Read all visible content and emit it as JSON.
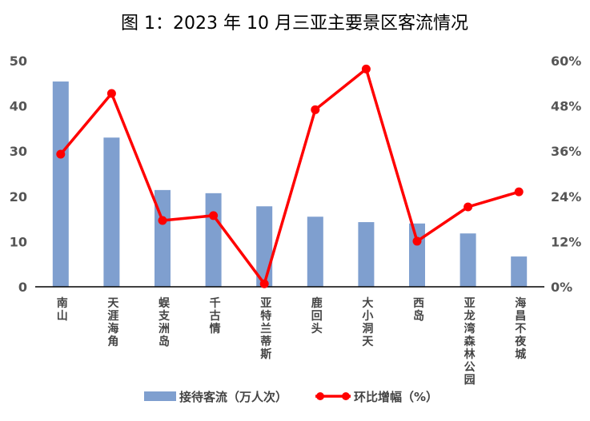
{
  "chart_data": {
    "type": "bar+line",
    "title": "图 1：2023 年 10 月三亚主要景区客流情况",
    "categories": [
      "南山",
      "天涯海角",
      "蜈支洲岛",
      "千古情",
      "亚特兰蒂斯",
      "鹿回头",
      "大小洞天",
      "西岛",
      "亚龙湾森林公园",
      "海昌不夜城"
    ],
    "series": [
      {
        "name": "接待客流（万人次）",
        "type": "bar",
        "axis": "left",
        "color": "#7F9FCF",
        "values": [
          45.4,
          33.0,
          21.4,
          20.7,
          17.8,
          15.5,
          14.3,
          14.0,
          11.8,
          6.7
        ]
      },
      {
        "name": "环比增幅（%）",
        "type": "line",
        "axis": "right",
        "color": "#FF0000",
        "values": [
          35.2,
          51.3,
          17.6,
          18.9,
          0.8,
          47.0,
          57.8,
          12.1,
          21.2,
          25.2
        ]
      }
    ],
    "left_axis": {
      "ylim": [
        0,
        50
      ],
      "ticks": [
        "0",
        "10",
        "20",
        "30",
        "40",
        "50"
      ]
    },
    "right_axis": {
      "ylim": [
        0,
        60
      ],
      "ticks": [
        "0%",
        "12%",
        "24%",
        "36%",
        "48%",
        "60%"
      ]
    },
    "grid": false,
    "legend": "bottom"
  }
}
